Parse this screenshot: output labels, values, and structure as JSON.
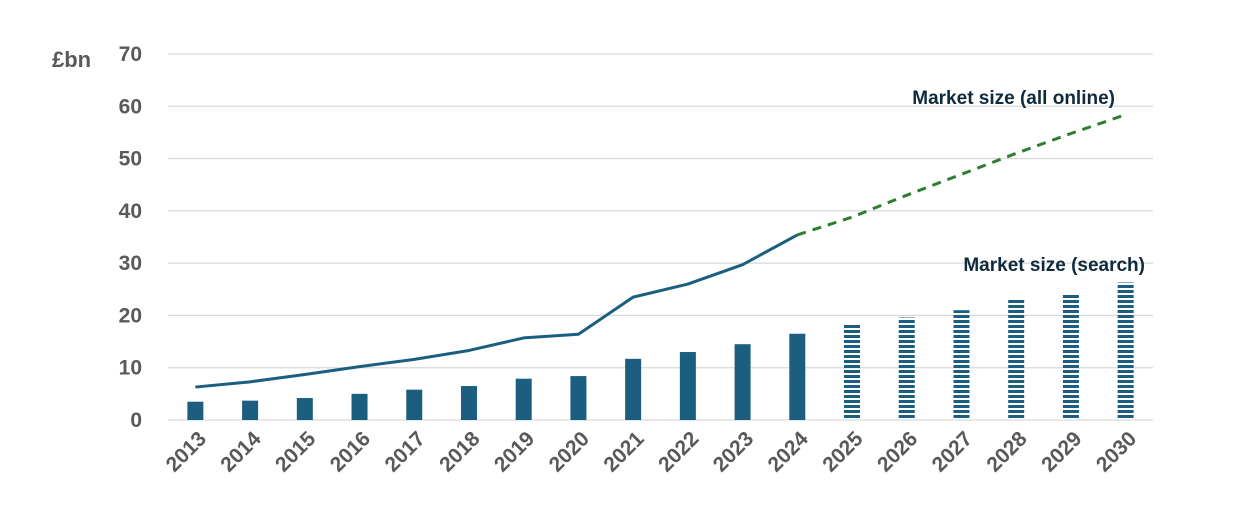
{
  "chart_data": {
    "type": "bar",
    "y_unit": "£bn",
    "ylim": [
      0,
      70
    ],
    "y_ticks": [
      "0",
      "10",
      "20",
      "30",
      "40",
      "50",
      "60",
      "70"
    ],
    "grid": true,
    "categories": [
      "2013",
      "2014",
      "2015",
      "2016",
      "2017",
      "2018",
      "2019",
      "2020",
      "2021",
      "2022",
      "2023",
      "2024",
      "2025",
      "2026",
      "2027",
      "2028",
      "2029",
      "2030"
    ],
    "forecast_start": "2025",
    "series": [
      {
        "name": "Market size (search)",
        "type": "bar",
        "color": "#1b5e80",
        "values": [
          3.5,
          3.7,
          4.2,
          5.0,
          5.8,
          6.5,
          7.9,
          8.4,
          11.7,
          13.0,
          14.5,
          16.5,
          18.2,
          19.6,
          21.0,
          23.1,
          24.2,
          26.3
        ]
      },
      {
        "name": "Market size (all online)",
        "type": "line",
        "color": "#1b5e80",
        "forecast_color": "#2e7d32",
        "values": [
          6.3,
          7.3,
          8.7,
          10.2,
          11.6,
          13.3,
          15.7,
          16.4,
          23.5,
          26.0,
          29.7,
          35.4,
          38.8,
          43.0,
          47.0,
          51.0,
          54.8,
          58.4
        ]
      }
    ]
  }
}
